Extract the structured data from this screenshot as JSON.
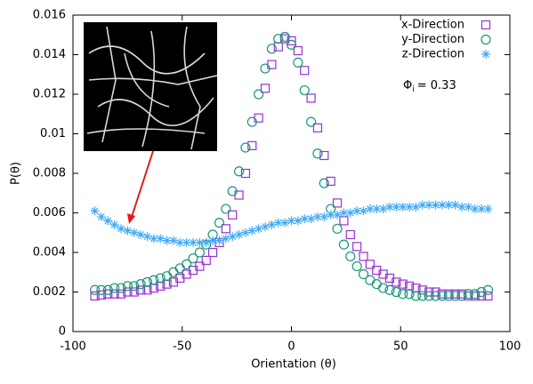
{
  "chart_data": {
    "type": "scatter",
    "x_label": "Orientation (θ)",
    "y_label": "P(θ)",
    "annotation": {
      "symbol": "Φ",
      "subscript": "i",
      "text": "= 0.33"
    },
    "xlim": [
      -100,
      100
    ],
    "xticks": [
      -100,
      -50,
      0,
      50,
      100
    ],
    "ylim": [
      0,
      0.016
    ],
    "yticks": [
      0,
      0.002,
      0.004,
      0.006,
      0.008,
      0.01,
      0.012,
      0.014,
      0.016
    ],
    "legend": "top-right",
    "x": [
      -90,
      -87,
      -84,
      -81,
      -78,
      -75,
      -72,
      -69,
      -66,
      -63,
      -60,
      -57,
      -54,
      -51,
      -48,
      -45,
      -42,
      -39,
      -36,
      -33,
      -30,
      -27,
      -24,
      -21,
      -18,
      -15,
      -12,
      -9,
      -6,
      -3,
      0,
      3,
      6,
      9,
      12,
      15,
      18,
      21,
      24,
      27,
      30,
      33,
      36,
      39,
      42,
      45,
      48,
      51,
      54,
      57,
      60,
      63,
      66,
      69,
      72,
      75,
      78,
      81,
      84,
      87,
      90
    ],
    "series": [
      {
        "name": "x-Direction",
        "color": "#9a2fd6",
        "marker": "square",
        "values": [
          0.0018,
          0.00185,
          0.0019,
          0.0019,
          0.0019,
          0.002,
          0.002,
          0.0021,
          0.0021,
          0.0022,
          0.0023,
          0.0024,
          0.0025,
          0.0027,
          0.0029,
          0.0031,
          0.0033,
          0.0036,
          0.004,
          0.0045,
          0.0052,
          0.0059,
          0.0069,
          0.008,
          0.0094,
          0.0108,
          0.0123,
          0.0135,
          0.0144,
          0.0148,
          0.0147,
          0.0142,
          0.0132,
          0.0118,
          0.0103,
          0.0089,
          0.0076,
          0.0065,
          0.0056,
          0.0049,
          0.0043,
          0.0038,
          0.0034,
          0.0031,
          0.0029,
          0.0027,
          0.0025,
          0.0024,
          0.0023,
          0.0022,
          0.0021,
          0.002,
          0.002,
          0.0019,
          0.0019,
          0.0019,
          0.0019,
          0.0018,
          0.0018,
          0.0018,
          0.0018
        ]
      },
      {
        "name": "y-Direction",
        "color": "#17977a",
        "marker": "circle",
        "values": [
          0.0021,
          0.0021,
          0.0021,
          0.0022,
          0.0022,
          0.0023,
          0.0023,
          0.0024,
          0.0025,
          0.0026,
          0.0027,
          0.0028,
          0.003,
          0.0032,
          0.0034,
          0.0037,
          0.004,
          0.0044,
          0.0049,
          0.0055,
          0.0062,
          0.0071,
          0.0081,
          0.0093,
          0.0106,
          0.012,
          0.0133,
          0.0143,
          0.0148,
          0.0149,
          0.0145,
          0.0136,
          0.0122,
          0.0106,
          0.009,
          0.0075,
          0.0062,
          0.0052,
          0.0044,
          0.0038,
          0.0033,
          0.0029,
          0.0026,
          0.0024,
          0.0022,
          0.0021,
          0.002,
          0.0019,
          0.0019,
          0.0018,
          0.0018,
          0.0018,
          0.0018,
          0.0018,
          0.0018,
          0.0018,
          0.0018,
          0.0019,
          0.0019,
          0.002,
          0.0021
        ]
      },
      {
        "name": "z-Direction",
        "color": "#45aaf0",
        "marker": "asterisk",
        "values": [
          0.0061,
          0.0058,
          0.0056,
          0.0054,
          0.0052,
          0.0051,
          0.005,
          0.0049,
          0.0048,
          0.0047,
          0.0047,
          0.0046,
          0.0046,
          0.0045,
          0.0045,
          0.0045,
          0.0045,
          0.0045,
          0.0046,
          0.0046,
          0.0047,
          0.0048,
          0.0049,
          0.005,
          0.0051,
          0.0052,
          0.0053,
          0.0054,
          0.0055,
          0.0055,
          0.0056,
          0.0056,
          0.0057,
          0.0057,
          0.0058,
          0.0058,
          0.0059,
          0.0059,
          0.006,
          0.006,
          0.0061,
          0.0061,
          0.0062,
          0.0062,
          0.0062,
          0.0063,
          0.0063,
          0.0063,
          0.0063,
          0.0063,
          0.0064,
          0.0064,
          0.0064,
          0.0064,
          0.0064,
          0.0064,
          0.0063,
          0.0063,
          0.0062,
          0.0062,
          0.0062
        ]
      }
    ]
  }
}
